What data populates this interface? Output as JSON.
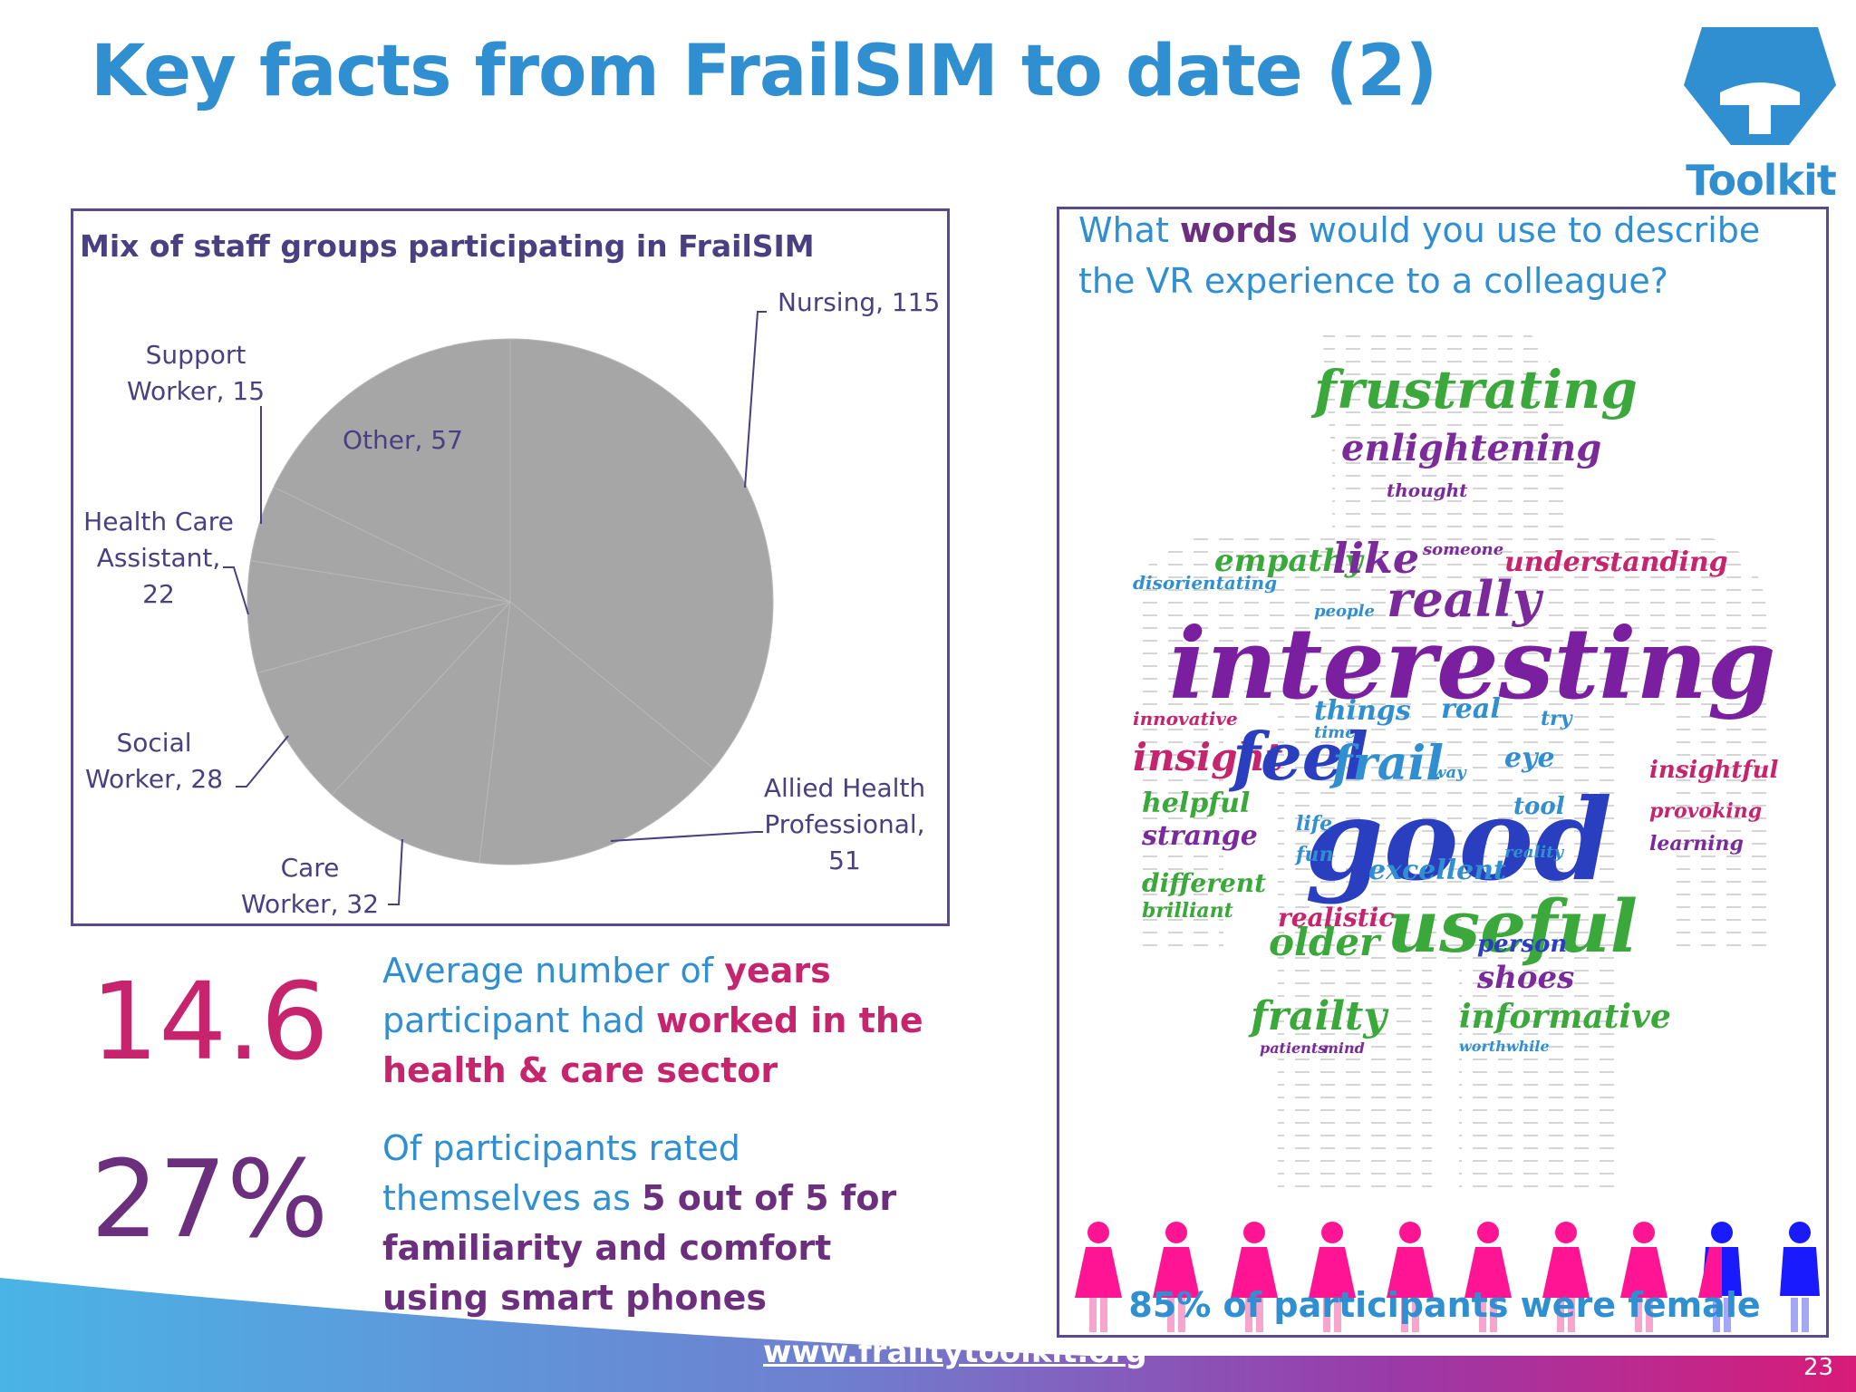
{
  "slide": {
    "title": "Key facts from FrailSIM to date (2)",
    "logo_text": "Toolkit",
    "footer_url": "www.frailtytoolkit.org",
    "page_number": "23"
  },
  "colors": {
    "title_blue": "#2f8fd0",
    "accent_pink": "#c7246e",
    "accent_purple": "#6b2f7e",
    "panel_border": "#5a4a8c",
    "pie_gray": "#a6a6a6"
  },
  "chart_data": {
    "type": "pie",
    "title": "Mix of staff groups participating in FrailSIM",
    "slices": [
      {
        "label": "Nursing",
        "value": 115
      },
      {
        "label": "Allied Health Professional",
        "value": 51
      },
      {
        "label": "Care Worker",
        "value": 32
      },
      {
        "label": "Social Worker",
        "value": 28
      },
      {
        "label": "Health Care Assistant",
        "value": 22
      },
      {
        "label": "Support Worker",
        "value": 15
      },
      {
        "label": "Other",
        "value": 57
      }
    ],
    "label_texts": {
      "nursing": "Nursing,  115",
      "support_1": "Support",
      "support_2": "Worker,  15",
      "other": "Other,  57",
      "hca_1": "Health Care",
      "hca_2": "Assistant,",
      "hca_3": "22",
      "social_1": "Social",
      "social_2": "Worker,  28",
      "ahp_1": "Allied Health",
      "ahp_2": "Professional,",
      "ahp_3": "51",
      "care_1": "Care",
      "care_2": "Worker,  32"
    }
  },
  "stats": [
    {
      "value": "14.6",
      "text_parts": [
        "Average number of ",
        "years",
        " participant had ",
        "worked in the health & care sector"
      ]
    },
    {
      "value": "27%",
      "text_parts": [
        "Of participants rated themselves as ",
        "5 out of 5 for familiarity and comfort using smart phones"
      ]
    }
  ],
  "word_cloud": {
    "question_parts": [
      "What ",
      "words",
      " would you use to describe the VR experience to a colleague?"
    ],
    "words": [
      {
        "text": "frustrating",
        "color": "#3aa83a"
      },
      {
        "text": "enlightening",
        "color": "#7a2a9a"
      },
      {
        "text": "thought",
        "color": "#7a2a9a"
      },
      {
        "text": "empathy",
        "color": "#3aa83a"
      },
      {
        "text": "like",
        "color": "#7a2a9a"
      },
      {
        "text": "someone",
        "color": "#7a2a9a"
      },
      {
        "text": "understanding",
        "color": "#c7246e"
      },
      {
        "text": "really",
        "color": "#7a2a9a"
      },
      {
        "text": "disorientating",
        "color": "#2f8fd0"
      },
      {
        "text": "people",
        "color": "#2f8fd0"
      },
      {
        "text": "interesting",
        "color": "#7a1fa0"
      },
      {
        "text": "innovative",
        "color": "#c7246e"
      },
      {
        "text": "things",
        "color": "#2f8fd0"
      },
      {
        "text": "real",
        "color": "#2f8fd0"
      },
      {
        "text": "time",
        "color": "#2f8fd0"
      },
      {
        "text": "try",
        "color": "#2f8fd0"
      },
      {
        "text": "insight",
        "color": "#c7246e"
      },
      {
        "text": "feel",
        "color": "#2a3fc0"
      },
      {
        "text": "frail",
        "color": "#2f8fd0"
      },
      {
        "text": "eye",
        "color": "#2f8fd0"
      },
      {
        "text": "insightful",
        "color": "#c7246e"
      },
      {
        "text": "way",
        "color": "#2f8fd0"
      },
      {
        "text": "helpful",
        "color": "#3aa83a"
      },
      {
        "text": "tool",
        "color": "#2f8fd0"
      },
      {
        "text": "provoking",
        "color": "#c7246e"
      },
      {
        "text": "strange",
        "color": "#7a2a9a"
      },
      {
        "text": "good",
        "color": "#2a3fc0"
      },
      {
        "text": "life",
        "color": "#2f8fd0"
      },
      {
        "text": "fun",
        "color": "#2f8fd0"
      },
      {
        "text": "learning",
        "color": "#7a2a9a"
      },
      {
        "text": "excellent",
        "color": "#2f8fd0"
      },
      {
        "text": "reality",
        "color": "#2f8fd0"
      },
      {
        "text": "different",
        "color": "#3aa83a"
      },
      {
        "text": "brilliant",
        "color": "#3aa83a"
      },
      {
        "text": "useful",
        "color": "#3aa83a"
      },
      {
        "text": "realistic",
        "color": "#c7246e"
      },
      {
        "text": "person",
        "color": "#2a3fc0"
      },
      {
        "text": "older",
        "color": "#3aa83a"
      },
      {
        "text": "shoes",
        "color": "#7a2a9a"
      },
      {
        "text": "frailty",
        "color": "#3aa83a"
      },
      {
        "text": "informative",
        "color": "#3aa83a"
      },
      {
        "text": "patients",
        "color": "#7a2a9a"
      },
      {
        "text": "mind",
        "color": "#7a2a9a"
      },
      {
        "text": "worthwhile",
        "color": "#2f8fd0"
      }
    ]
  },
  "female_stat": {
    "text": "85% of participants were female",
    "total_figures": 10,
    "female_count": 8.5,
    "female_color": "#ff1493",
    "male_color": "#1a1aff"
  }
}
